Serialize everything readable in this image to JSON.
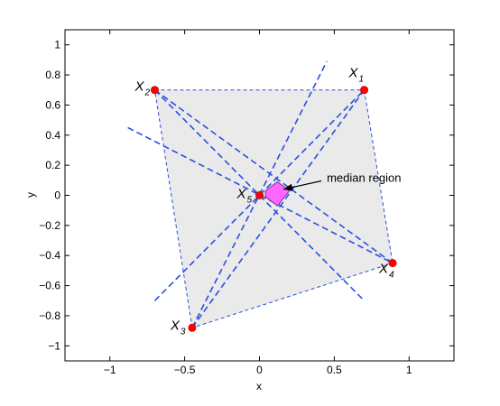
{
  "chart_data": {
    "type": "scatter",
    "xlabel": "x",
    "ylabel": "y",
    "xlim": [
      -1.3,
      1.3
    ],
    "ylim": [
      -1.1,
      1.1
    ],
    "xticks": [
      -1,
      -0.5,
      0,
      0.5,
      1
    ],
    "yticks": [
      -1,
      -0.8,
      -0.6,
      -0.4,
      -0.2,
      0,
      0.2,
      0.4,
      0.6,
      0.8,
      1
    ],
    "xtick_labels": [
      "−1",
      "−0.5",
      "0",
      "0.5",
      "1"
    ],
    "ytick_labels": [
      "−1",
      "−0.8",
      "−0.6",
      "−0.4",
      "−0.2",
      "0",
      "0.2",
      "0.4",
      "0.6",
      "0.8",
      "1"
    ],
    "grid": false,
    "points": [
      {
        "label": "X",
        "subscript": "1",
        "x": 0.7,
        "y": 0.7
      },
      {
        "label": "X",
        "subscript": "2",
        "x": -0.7,
        "y": 0.7
      },
      {
        "label": "X",
        "subscript": "3",
        "x": -0.45,
        "y": -0.88
      },
      {
        "label": "X",
        "subscript": "4",
        "x": 0.89,
        "y": -0.45
      },
      {
        "label": "X",
        "subscript": "5",
        "x": 0.0,
        "y": 0.0
      }
    ],
    "hull": [
      [
        -0.7,
        0.7
      ],
      [
        0.7,
        0.7
      ],
      [
        0.89,
        -0.45
      ],
      [
        -0.45,
        -0.88
      ]
    ],
    "dashed_lines": [
      [
        [
          -0.7,
          0.7
        ],
        [
          0.89,
          -0.45
        ]
      ],
      [
        [
          -0.7,
          0.7
        ],
        [
          0.7,
          -0.7
        ]
      ],
      [
        [
          -0.88,
          0.45
        ],
        [
          0.89,
          -0.45
        ]
      ],
      [
        [
          -0.45,
          -0.88
        ],
        [
          0.7,
          0.7
        ]
      ],
      [
        [
          -0.45,
          -0.88
        ],
        [
          0.45,
          0.89
        ]
      ],
      [
        [
          -0.7,
          -0.7
        ],
        [
          0.7,
          0.7
        ]
      ]
    ],
    "median_region": [
      [
        0.04,
        0.03
      ],
      [
        0.12,
        0.09
      ],
      [
        0.2,
        0.03
      ],
      [
        0.12,
        -0.07
      ],
      [
        0.04,
        -0.01
      ]
    ],
    "annotation": {
      "text": "median region",
      "tail": [
        0.45,
        0.12
      ],
      "head": [
        0.16,
        0.04
      ]
    },
    "colors": {
      "points": "#ff0000",
      "lines": "#2a4fe0",
      "hull": "#eaeaea",
      "median": "#ff66ff"
    }
  }
}
